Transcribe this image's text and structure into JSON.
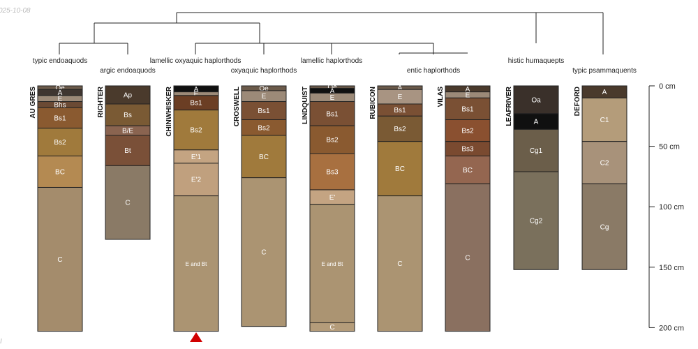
{
  "header": {
    "date_fragment": "025-10-08",
    "corner_fragment": "I"
  },
  "depth_axis": {
    "unit": "cm",
    "ticks": [
      0,
      50,
      100,
      150,
      200
    ],
    "max": 200
  },
  "taxa": [
    {
      "label": "typic endoaquods"
    },
    {
      "label": "argic endoaquods"
    },
    {
      "label": "lamellic oxyaquic haplorthods"
    },
    {
      "label": "oxyaquic haplorthods"
    },
    {
      "label": "lamellic haplorthods"
    },
    {
      "label": "entic haplorthods"
    },
    {
      "label": "histic humaquepts"
    },
    {
      "label": "typic psammaquents"
    }
  ],
  "profiles": [
    {
      "name": "AU GRES",
      "color_key": "",
      "horizons": [
        {
          "name": "Oe",
          "top": 0,
          "bottom": 3,
          "color": "#6b5a4a"
        },
        {
          "name": "A",
          "top": 3,
          "bottom": 8,
          "color": "#3f3630"
        },
        {
          "name": "E",
          "top": 8,
          "bottom": 13,
          "color": "#9c8a78"
        },
        {
          "name": "Bhs",
          "top": 13,
          "bottom": 18,
          "color": "#6b4a34"
        },
        {
          "name": "Bs1",
          "top": 18,
          "bottom": 35,
          "color": "#8a5a30"
        },
        {
          "name": "Bs2",
          "top": 35,
          "bottom": 58,
          "color": "#a07a3c"
        },
        {
          "name": "BC",
          "top": 58,
          "bottom": 84,
          "color": "#b48a52"
        },
        {
          "name": "C",
          "top": 84,
          "bottom": 203,
          "color": "#a48c6c"
        }
      ]
    },
    {
      "name": "RICHTER",
      "horizons": [
        {
          "name": "Ap",
          "top": 0,
          "bottom": 15,
          "color": "#4a3a2c"
        },
        {
          "name": "Bs",
          "top": 15,
          "bottom": 33,
          "color": "#7a5a34"
        },
        {
          "name": "B/E",
          "top": 33,
          "bottom": 41,
          "color": "#8a6450"
        },
        {
          "name": "Bt",
          "top": 41,
          "bottom": 66,
          "color": "#7a5038"
        },
        {
          "name": "C",
          "top": 66,
          "bottom": 127,
          "color": "#8a7a66"
        }
      ]
    },
    {
      "name": "CHINWHISKER",
      "horizons": [
        {
          "name": "A",
          "top": 0,
          "bottom": 5,
          "color": "#101010"
        },
        {
          "name": "E",
          "top": 5,
          "bottom": 8,
          "color": "#9c8a78"
        },
        {
          "name": "Bs1",
          "top": 8,
          "bottom": 20,
          "color": "#6b3e24"
        },
        {
          "name": "Bs2",
          "top": 20,
          "bottom": 53,
          "color": "#a07a3c"
        },
        {
          "name": "E'1",
          "top": 53,
          "bottom": 64,
          "color": "#c4a482"
        },
        {
          "name": "E'2",
          "top": 64,
          "bottom": 91,
          "color": "#c0a07e"
        },
        {
          "name": "E and Bt",
          "top": 91,
          "bottom": 203,
          "color": "#ab9472"
        }
      ]
    },
    {
      "name": "CROSWELL",
      "horizons": [
        {
          "name": "Oe",
          "top": 0,
          "bottom": 4,
          "color": "#6b5a4a"
        },
        {
          "name": "E",
          "top": 4,
          "bottom": 13,
          "color": "#9c8a78"
        },
        {
          "name": "Bs1",
          "top": 13,
          "bottom": 28,
          "color": "#7a5034"
        },
        {
          "name": "Bs2",
          "top": 28,
          "bottom": 41,
          "color": "#8a5a30"
        },
        {
          "name": "BC",
          "top": 41,
          "bottom": 76,
          "color": "#a07a3c"
        },
        {
          "name": "C",
          "top": 76,
          "bottom": 199,
          "color": "#ab9472"
        }
      ]
    },
    {
      "name": "LINDQUIST",
      "horizons": [
        {
          "name": "Oe",
          "top": 0,
          "bottom": 2,
          "color": "#6b5a4a"
        },
        {
          "name": "A",
          "top": 2,
          "bottom": 6,
          "color": "#101010"
        },
        {
          "name": "E",
          "top": 6,
          "bottom": 13,
          "color": "#9c8a78"
        },
        {
          "name": "Bs1",
          "top": 13,
          "bottom": 33,
          "color": "#7a5034"
        },
        {
          "name": "Bs2",
          "top": 33,
          "bottom": 56,
          "color": "#8a5a30"
        },
        {
          "name": "Bs3",
          "top": 56,
          "bottom": 86,
          "color": "#a87040"
        },
        {
          "name": "E'",
          "top": 86,
          "bottom": 98,
          "color": "#c4a482"
        },
        {
          "name": "E and Bt",
          "top": 98,
          "bottom": 196,
          "color": "#ab9472"
        },
        {
          "name": "C",
          "top": 196,
          "bottom": 203,
          "color": "#b49c7a"
        }
      ]
    },
    {
      "name": "RUBICON",
      "horizons": [
        {
          "name": "A",
          "top": 0,
          "bottom": 3,
          "color": "#6b5a4a"
        },
        {
          "name": "E",
          "top": 3,
          "bottom": 15,
          "color": "#a89482"
        },
        {
          "name": "Bs1",
          "top": 15,
          "bottom": 25,
          "color": "#7a5034"
        },
        {
          "name": "Bs2",
          "top": 25,
          "bottom": 46,
          "color": "#7a5a34"
        },
        {
          "name": "BC",
          "top": 46,
          "bottom": 91,
          "color": "#a07a3c"
        },
        {
          "name": "C",
          "top": 91,
          "bottom": 203,
          "color": "#ab9472"
        }
      ]
    },
    {
      "name": "VILAS",
      "horizons": [
        {
          "name": "A",
          "top": 0,
          "bottom": 5,
          "color": "#4a3a2c"
        },
        {
          "name": "E",
          "top": 5,
          "bottom": 10,
          "color": "#9c8a78"
        },
        {
          "name": "Bs1",
          "top": 10,
          "bottom": 28,
          "color": "#7a5034"
        },
        {
          "name": "Bs2",
          "top": 28,
          "bottom": 46,
          "color": "#8a5030"
        },
        {
          "name": "Bs3",
          "top": 46,
          "bottom": 58,
          "color": "#7a4a30"
        },
        {
          "name": "BC",
          "top": 58,
          "bottom": 81,
          "color": "#946650"
        },
        {
          "name": "C",
          "top": 81,
          "bottom": 203,
          "color": "#8a7060"
        }
      ]
    },
    {
      "name": "LEAFRIVER",
      "horizons": [
        {
          "name": "Oa",
          "top": 0,
          "bottom": 23,
          "color": "#3a302a"
        },
        {
          "name": "A",
          "top": 23,
          "bottom": 36,
          "color": "#101010"
        },
        {
          "name": "Cg1",
          "top": 36,
          "bottom": 71,
          "color": "#6b5e4a"
        },
        {
          "name": "Cg2",
          "top": 71,
          "bottom": 152,
          "color": "#7a705c"
        }
      ]
    },
    {
      "name": "DEFORD",
      "horizons": [
        {
          "name": "A",
          "top": 0,
          "bottom": 10,
          "color": "#4a3a2c"
        },
        {
          "name": "C1",
          "top": 10,
          "bottom": 46,
          "color": "#b49c7a"
        },
        {
          "name": "C2",
          "top": 46,
          "bottom": 81,
          "color": "#a8927a"
        },
        {
          "name": "Cg",
          "top": 81,
          "bottom": 152,
          "color": "#8a7a66"
        }
      ]
    }
  ]
}
